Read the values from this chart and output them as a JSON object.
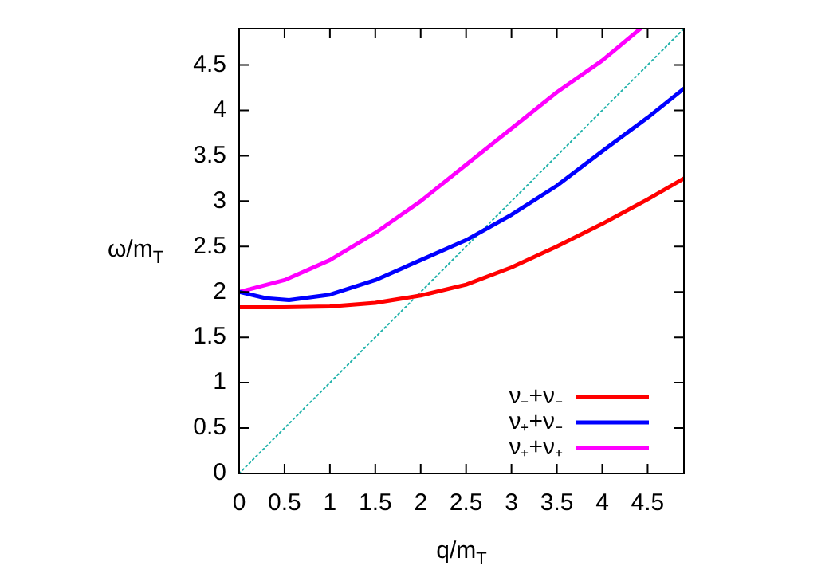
{
  "chart_data": {
    "type": "line",
    "xlabel": "q/m$_{T}$",
    "ylabel": "ω/m$_{T}$",
    "xlim": [
      0,
      4.9
    ],
    "ylim": [
      0,
      4.9
    ],
    "xticks": [
      0,
      0.5,
      1,
      1.5,
      2,
      2.5,
      3,
      3.5,
      4,
      4.5
    ],
    "yticks": [
      0,
      0.5,
      1,
      1.5,
      2,
      2.5,
      3,
      3.5,
      4,
      4.5
    ],
    "grid": false,
    "legend": "bottom right",
    "marker": "none",
    "line_style": "solid",
    "series": [
      {
        "name": "ν₋+ν₋",
        "color": "#ff0000",
        "x": [
          0,
          0.5,
          1,
          1.5,
          2,
          2.5,
          3,
          3.5,
          4,
          4.5,
          4.9
        ],
        "values": [
          1.83,
          1.83,
          1.84,
          1.88,
          1.96,
          2.08,
          2.27,
          2.5,
          2.75,
          3.02,
          3.25
        ]
      },
      {
        "name": "ν₊+ν₋",
        "color": "#0000ff",
        "x": [
          0,
          0.3,
          0.55,
          1,
          1.5,
          2,
          2.5,
          3,
          3.5,
          4,
          4.5,
          4.9
        ],
        "values": [
          2.0,
          1.93,
          1.91,
          1.97,
          2.13,
          2.35,
          2.57,
          2.85,
          3.17,
          3.55,
          3.92,
          4.24
        ]
      },
      {
        "name": "ν₊+ν₊",
        "color": "#ff00ff",
        "x": [
          0,
          0.5,
          1,
          1.5,
          2,
          2.5,
          3,
          3.5,
          4,
          4.42
        ],
        "values": [
          2.0,
          2.13,
          2.35,
          2.65,
          3.0,
          3.4,
          3.8,
          4.2,
          4.55,
          4.9
        ]
      },
      {
        "color": "#20b2aa",
        "line_style": "dotted",
        "x": [
          0,
          4.9
        ],
        "values": [
          0,
          4.9
        ]
      }
    ]
  }
}
